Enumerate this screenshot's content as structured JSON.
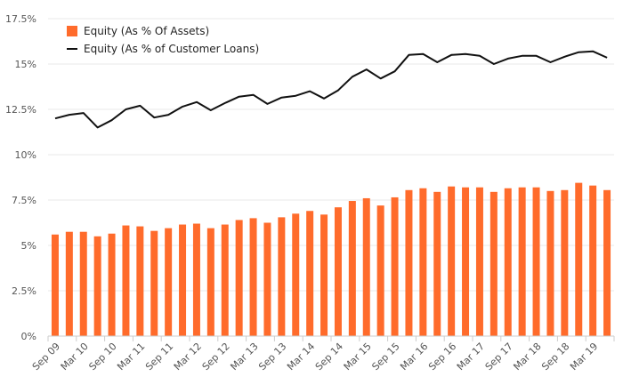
{
  "chart_data": {
    "type": "bar",
    "title": "",
    "xlabel": "",
    "ylabel": "",
    "ylim": [
      0,
      17.5
    ],
    "y_ticks": [
      "0%",
      "2.5%",
      "5%",
      "7.5%",
      "10%",
      "12.5%",
      "15%",
      "17.5%"
    ],
    "y_tick_values": [
      0,
      2.5,
      5,
      7.5,
      10,
      12.5,
      15,
      17.5
    ],
    "grid": true,
    "legend": {
      "placement": "top-left"
    },
    "x_labels": [
      {
        "label": "Sep 09",
        "index": 0
      },
      {
        "label": "Mar 10",
        "index": 2
      },
      {
        "label": "Sep 10",
        "index": 4
      },
      {
        "label": "Mar 11",
        "index": 6
      },
      {
        "label": "Sep 11",
        "index": 8
      },
      {
        "label": "Mar 12",
        "index": 10
      },
      {
        "label": "Sep 12",
        "index": 12
      },
      {
        "label": "Mar 13",
        "index": 14
      },
      {
        "label": "Sep 13",
        "index": 16
      },
      {
        "label": "Mar 14",
        "index": 18
      },
      {
        "label": "Sep 14",
        "index": 20
      },
      {
        "label": "Mar 15",
        "index": 22
      },
      {
        "label": "Sep 15",
        "index": 24
      },
      {
        "label": "Mar 16",
        "index": 26
      },
      {
        "label": "Sep 16",
        "index": 28
      },
      {
        "label": "Mar 17",
        "index": 30
      },
      {
        "label": "Sep 17",
        "index": 32
      },
      {
        "label": "Mar 18",
        "index": 34
      },
      {
        "label": "Sep 18",
        "index": 36
      },
      {
        "label": "Mar 19",
        "index": 38
      }
    ],
    "series": [
      {
        "name": "Equity (As % Of Assets)",
        "kind": "bar",
        "color": "#ff6b2b",
        "values": [
          5.6,
          5.75,
          5.75,
          5.5,
          5.65,
          6.1,
          6.05,
          5.8,
          5.95,
          6.15,
          6.2,
          5.95,
          6.15,
          6.4,
          6.5,
          6.25,
          6.55,
          6.75,
          6.9,
          6.7,
          7.1,
          7.45,
          7.6,
          7.2,
          7.65,
          8.05,
          8.15,
          7.95,
          8.25,
          8.2,
          8.2,
          7.95,
          8.15,
          8.2,
          8.2,
          8.0,
          8.05,
          8.45,
          8.3,
          8.05
        ]
      },
      {
        "name": "Equity (As % of Customer Loans)",
        "kind": "line",
        "color": "#111111",
        "values": [
          12.0,
          12.2,
          12.3,
          11.5,
          11.9,
          12.5,
          12.7,
          12.05,
          12.2,
          12.65,
          12.9,
          12.45,
          12.85,
          13.2,
          13.3,
          12.8,
          13.15,
          13.25,
          13.5,
          13.1,
          13.55,
          14.3,
          14.7,
          14.2,
          14.6,
          15.5,
          15.55,
          15.1,
          15.5,
          15.55,
          15.45,
          15.0,
          15.3,
          15.45,
          15.45,
          15.1,
          15.4,
          15.65,
          15.7,
          15.35
        ]
      }
    ]
  }
}
